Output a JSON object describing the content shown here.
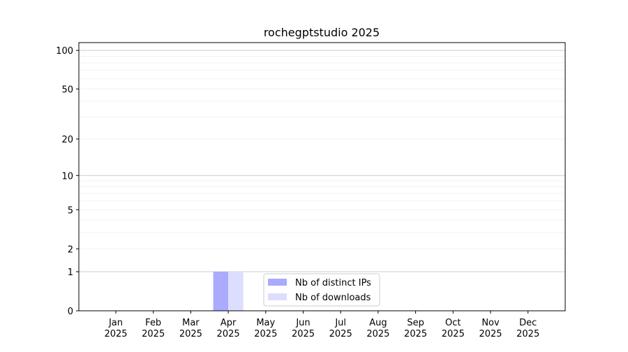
{
  "chart_data": {
    "type": "bar",
    "title": "rochegptstudio 2025",
    "xlabel": "",
    "ylabel": "",
    "yscale": "log(1+y)",
    "ylim": [
      0,
      115
    ],
    "yticks": [
      0,
      1,
      2,
      5,
      10,
      20,
      50,
      100
    ],
    "grid": true,
    "legend_position": "lower-center",
    "categories": [
      "Jan\n2025",
      "Feb\n2025",
      "Mar\n2025",
      "Apr\n2025",
      "May\n2025",
      "Jun\n2025",
      "Jul\n2025",
      "Aug\n2025",
      "Sep\n2025",
      "Oct\n2025",
      "Nov\n2025",
      "Dec\n2025"
    ],
    "series": [
      {
        "name": "Nb of distinct IPs",
        "color": "#aaaaff",
        "values": [
          0,
          0,
          0,
          1,
          0,
          0,
          0,
          0,
          0,
          0,
          0,
          0
        ]
      },
      {
        "name": "Nb of downloads",
        "color": "#ddddff",
        "values": [
          0,
          0,
          0,
          1,
          0,
          0,
          0,
          0,
          0,
          0,
          0,
          0
        ]
      }
    ]
  }
}
